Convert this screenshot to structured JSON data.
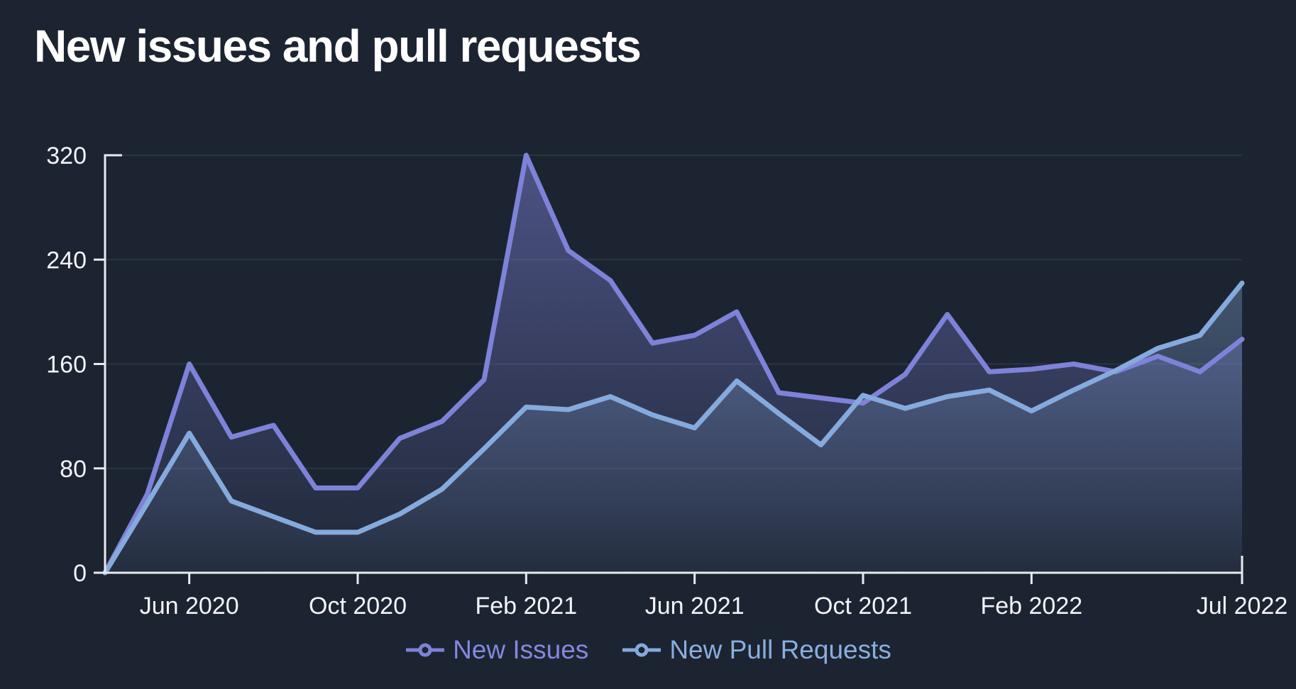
{
  "page": {
    "title": "New issues and pull requests",
    "background": "#1c2431",
    "axis_color": "#e8eaf0",
    "tick_text_color": "#f2f4f8",
    "gridline_color": "rgba(235,240,250,0.08)"
  },
  "chart_data": {
    "type": "area",
    "title": "New issues and pull requests",
    "xlabel": "",
    "ylabel": "",
    "ylim": [
      0,
      320
    ],
    "y_ticks": [
      0,
      80,
      160,
      240,
      320
    ],
    "x_tick_labels": [
      "Jun 2020",
      "Oct 2020",
      "Feb 2021",
      "Jun 2021",
      "Oct 2021",
      "Feb 2022",
      "Jul 2022"
    ],
    "grid": "horizontal",
    "legend_position": "bottom",
    "categories": [
      "Apr 2020",
      "May 2020",
      "Jun 2020",
      "Jul 2020",
      "Aug 2020",
      "Sep 2020",
      "Oct 2020",
      "Nov 2020",
      "Dec 2020",
      "Jan 2021",
      "Feb 2021",
      "Mar 2021",
      "Apr 2021",
      "May 2021",
      "Jun 2021",
      "Jul 2021",
      "Aug 2021",
      "Sep 2021",
      "Oct 2021",
      "Nov 2021",
      "Dec 2021",
      "Jan 2022",
      "Feb 2022",
      "Mar 2022",
      "Apr 2022",
      "May 2022",
      "Jun 2022",
      "Jul 2022"
    ],
    "series": [
      {
        "name": "New Issues",
        "color": "#7e82d8",
        "text_color": "#8488e0",
        "values": [
          0,
          60,
          160,
          104,
          113,
          65,
          65,
          103,
          116,
          148,
          320,
          247,
          224,
          176,
          182,
          200,
          138,
          134,
          130,
          152,
          198,
          154,
          156,
          160,
          154,
          166,
          154,
          179
        ]
      },
      {
        "name": "New Pull Requests",
        "color": "#85aadd",
        "text_color": "#8aaede",
        "values": [
          0,
          53,
          107,
          55,
          43,
          31,
          31,
          45,
          64,
          95,
          127,
          125,
          135,
          121,
          111,
          147,
          122,
          98,
          136,
          126,
          135,
          140,
          124,
          140,
          155,
          172,
          182,
          222
        ]
      }
    ]
  }
}
